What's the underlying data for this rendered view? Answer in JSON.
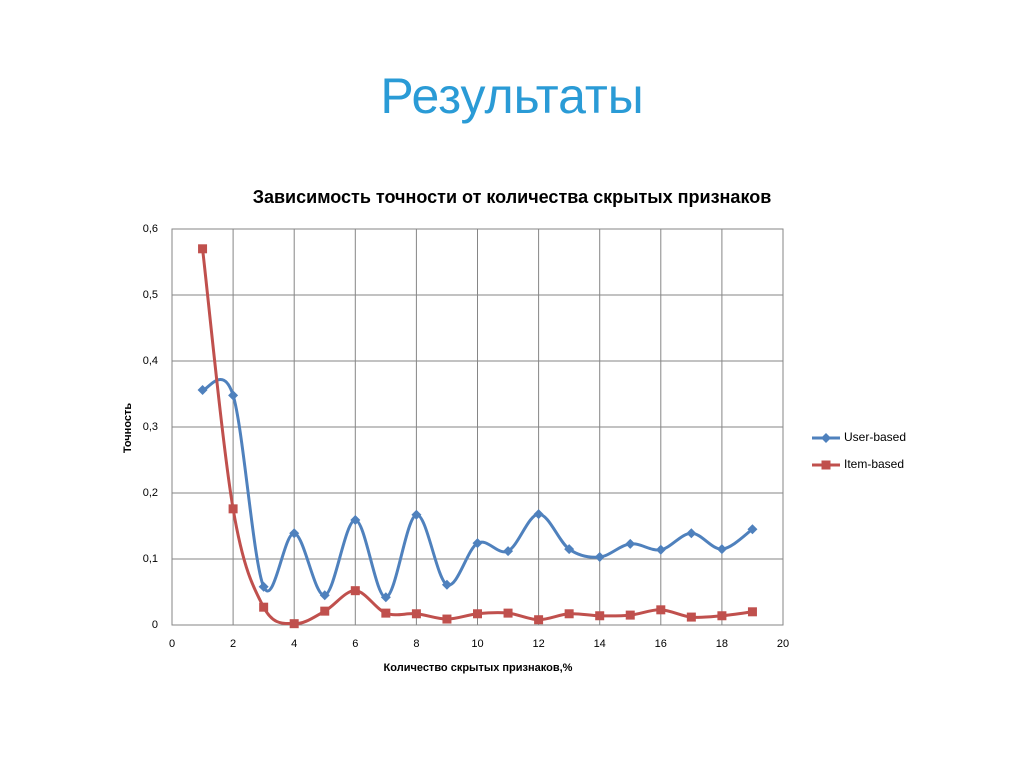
{
  "slide_title": "Результаты",
  "chart_data": {
    "type": "line",
    "title": "Зависимость точности от количества скрытых признаков",
    "x_label": "Количество скрытых признаков,%",
    "y_label": "Точность",
    "x": [
      1,
      2,
      3,
      4,
      5,
      6,
      7,
      8,
      9,
      10,
      11,
      12,
      13,
      14,
      15,
      16,
      17,
      18,
      19
    ],
    "series": [
      {
        "name": "User-based",
        "color": "#4f81bd",
        "marker": "diamond",
        "values": [
          0.356,
          0.348,
          0.058,
          0.139,
          0.045,
          0.159,
          0.042,
          0.167,
          0.061,
          0.124,
          0.112,
          0.168,
          0.115,
          0.103,
          0.123,
          0.114,
          0.139,
          0.115,
          0.145
        ]
      },
      {
        "name": "Item-based",
        "color": "#c0504d",
        "marker": "square",
        "values": [
          0.57,
          0.176,
          0.027,
          0.002,
          0.021,
          0.052,
          0.018,
          0.017,
          0.009,
          0.017,
          0.018,
          0.008,
          0.017,
          0.014,
          0.015,
          0.023,
          0.012,
          0.014,
          0.02
        ]
      }
    ],
    "smooth": true,
    "xlim": [
      0,
      20
    ],
    "xticks": [
      0,
      2,
      4,
      6,
      8,
      10,
      12,
      14,
      16,
      18,
      20
    ],
    "ylim": [
      0,
      0.6
    ],
    "yticks": [
      0,
      {
        "value": 0.1,
        "label": "0,1"
      },
      {
        "value": 0.2,
        "label": "0,2"
      },
      {
        "value": 0.3,
        "label": "0,3"
      },
      {
        "value": 0.4,
        "label": "0,4"
      },
      {
        "value": 0.5,
        "label": "0,5"
      },
      {
        "value": 0.6,
        "label": "0,6"
      }
    ],
    "grid": true,
    "legend": "right"
  }
}
